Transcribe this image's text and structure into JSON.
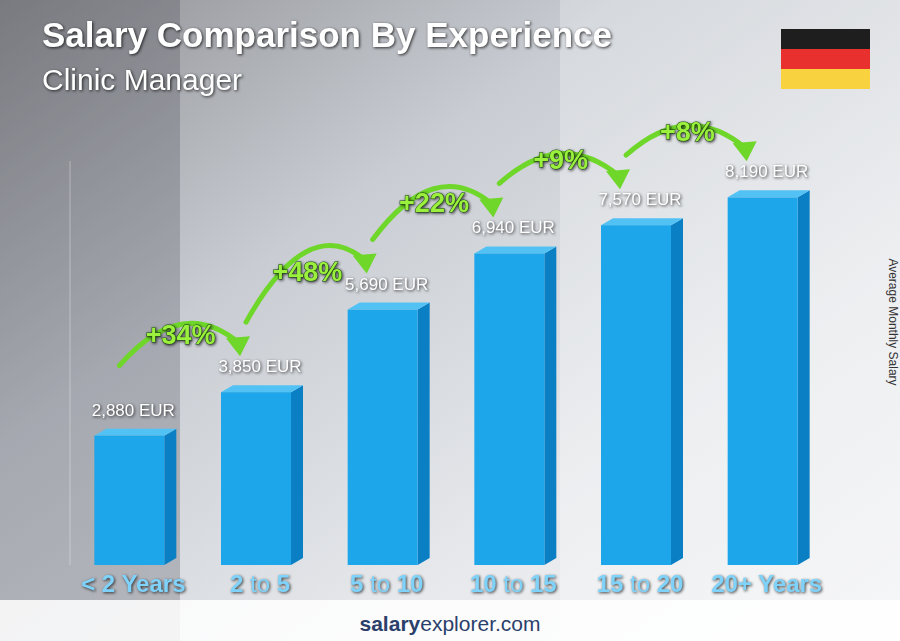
{
  "chart_data": {
    "type": "bar",
    "title": "Salary Comparison By Experience",
    "subtitle": "Clinic Manager",
    "y_label": "Average Monthly Salary",
    "categories": [
      "< 2 Years",
      "2 to 5",
      "5 to 10",
      "10 to 15",
      "15 to 20",
      "20+ Years"
    ],
    "values": [
      2880,
      3850,
      5690,
      6940,
      7570,
      8190
    ],
    "value_labels": [
      "2,880 EUR",
      "3,850 EUR",
      "5,690 EUR",
      "6,940 EUR",
      "7,570 EUR",
      "8,190 EUR"
    ],
    "annotations": [
      "+34%",
      "+48%",
      "+22%",
      "+9%",
      "+8%"
    ],
    "source": [
      "salary",
      "explorer.com"
    ],
    "color": "#1ea6ea",
    "ylim": [
      0,
      9000
    ],
    "yticks": [],
    "grid": false,
    "data_labels": true,
    "tick_labels": "x"
  }
}
